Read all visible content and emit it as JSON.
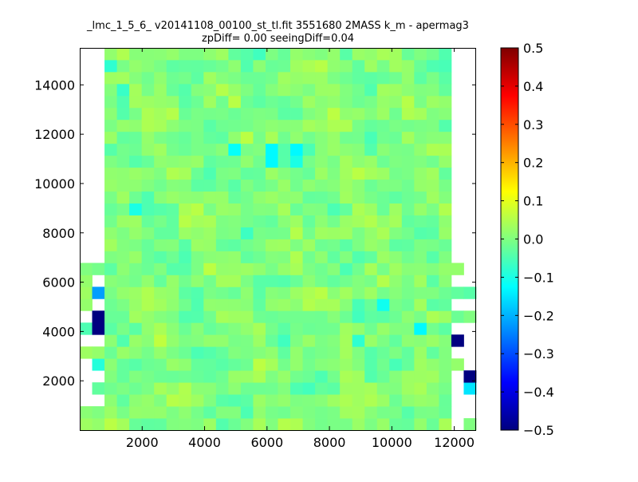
{
  "chart_data": {
    "type": "heatmap",
    "title": "_lmc_1_5_6_ v20141108_00100_st_tl.fit 3551680 2MASS k_m - apermag3",
    "subtitle": "zpDiff= 0.00 seeingDiff=0.04",
    "xlabel": "",
    "ylabel": "",
    "xlim": [
      0,
      12700
    ],
    "ylim": [
      0,
      15500
    ],
    "xticks": [
      2000,
      4000,
      6000,
      8000,
      10000,
      12000
    ],
    "yticks": [
      2000,
      4000,
      6000,
      8000,
      10000,
      12000,
      14000
    ],
    "nx": 32,
    "ny": 32,
    "colormap": "jet",
    "clim": [
      -0.5,
      0.5
    ],
    "colorbar_ticks": [
      -0.5,
      -0.4,
      -0.3,
      -0.2,
      -0.1,
      0.0,
      0.1,
      0.2,
      0.3,
      0.4,
      0.5
    ],
    "colorbar_tick_labels": [
      "−0.5",
      "−0.4",
      "−0.3",
      "−0.2",
      "−0.1",
      "0.0",
      "0.1",
      "0.2",
      "0.3",
      "0.4",
      "0.5"
    ],
    "filled_column_range": [
      2,
      29
    ],
    "typical_value": 0.0,
    "cells": [
      {
        "col": 0,
        "row": 13,
        "value": 0.0
      },
      {
        "col": 1,
        "row": 13,
        "value": -0.01
      },
      {
        "col": 0,
        "row": 12,
        "value": 0.02
      },
      {
        "col": 0,
        "row": 11,
        "value": 0.03
      },
      {
        "col": 1,
        "row": 11,
        "value": -0.22
      },
      {
        "col": 0,
        "row": 10,
        "value": 0.02
      },
      {
        "col": 1,
        "row": 9,
        "value": -0.5
      },
      {
        "col": 0,
        "row": 8,
        "value": -0.05
      },
      {
        "col": 1,
        "row": 8,
        "value": -0.5
      },
      {
        "col": 0,
        "row": 6,
        "value": 0.03
      },
      {
        "col": 1,
        "row": 6,
        "value": 0.02
      },
      {
        "col": 1,
        "row": 5,
        "value": -0.09
      },
      {
        "col": 1,
        "row": 3,
        "value": -0.03
      },
      {
        "col": 0,
        "row": 1,
        "value": 0.01
      },
      {
        "col": 1,
        "row": 1,
        "value": 0.0
      },
      {
        "col": 0,
        "row": 0,
        "value": 0.03
      },
      {
        "col": 1,
        "row": 0,
        "value": 0.02
      },
      {
        "col": 30,
        "row": 13,
        "value": 0.02
      },
      {
        "col": 30,
        "row": 11,
        "value": -0.03
      },
      {
        "col": 31,
        "row": 11,
        "value": -0.04
      },
      {
        "col": 30,
        "row": 9,
        "value": -0.02
      },
      {
        "col": 31,
        "row": 9,
        "value": 0.0
      },
      {
        "col": 30,
        "row": 7,
        "value": -0.5
      },
      {
        "col": 30,
        "row": 5,
        "value": 0.02
      },
      {
        "col": 31,
        "row": 4,
        "value": -0.5
      },
      {
        "col": 31,
        "row": 3,
        "value": -0.15
      },
      {
        "col": 31,
        "row": 0,
        "value": 0.0
      },
      {
        "col": 2,
        "row": 30,
        "value": -0.08
      },
      {
        "col": 3,
        "row": 28,
        "value": -0.07
      },
      {
        "col": 12,
        "row": 23,
        "value": -0.12
      },
      {
        "col": 15,
        "row": 23,
        "value": -0.13
      },
      {
        "col": 15,
        "row": 22,
        "value": -0.13
      },
      {
        "col": 17,
        "row": 23,
        "value": -0.13
      },
      {
        "col": 17,
        "row": 22,
        "value": -0.1
      },
      {
        "col": 4,
        "row": 18,
        "value": -0.1
      },
      {
        "col": 22,
        "row": 7,
        "value": -0.08
      },
      {
        "col": 24,
        "row": 10,
        "value": -0.11
      },
      {
        "col": 27,
        "row": 8,
        "value": -0.13
      },
      {
        "col": 29,
        "row": 10,
        "value": -0.03
      }
    ]
  }
}
